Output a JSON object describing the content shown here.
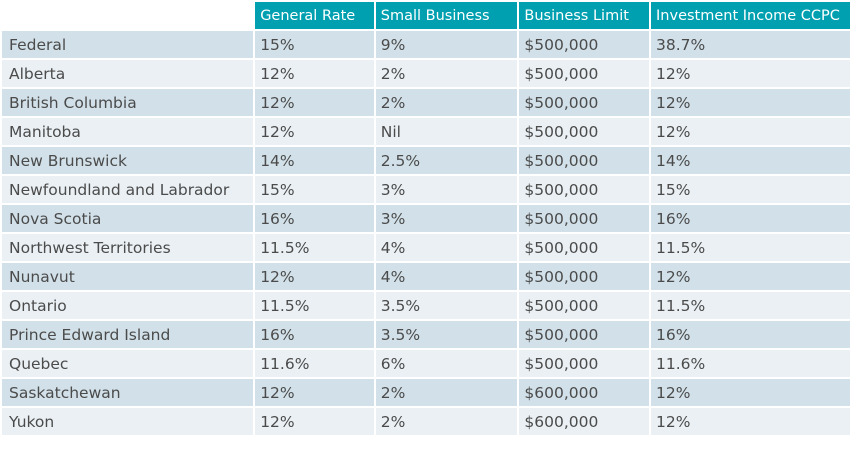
{
  "table": {
    "headers": [
      "",
      "General Rate",
      "Small Business",
      "Business Limit",
      "Investment Income CCPC"
    ],
    "rows": [
      [
        "Federal",
        "15%",
        "9%",
        "$500,000",
        "38.7%"
      ],
      [
        "Alberta",
        "12%",
        "2%",
        "$500,000",
        "12%"
      ],
      [
        "British Columbia",
        "12%",
        "2%",
        "$500,000",
        "12%"
      ],
      [
        "Manitoba",
        "12%",
        "Nil",
        "$500,000",
        "12%"
      ],
      [
        "New Brunswick",
        "14%",
        "2.5%",
        "$500,000",
        "14%"
      ],
      [
        "Newfoundland and Labrador",
        "15%",
        "3%",
        "$500,000",
        "15%"
      ],
      [
        "Nova Scotia",
        "16%",
        "3%",
        "$500,000",
        "16%"
      ],
      [
        "Northwest Territories",
        "11.5%",
        "4%",
        "$500,000",
        "11.5%"
      ],
      [
        "Nunavut",
        "12%",
        "4%",
        "$500,000",
        "12%"
      ],
      [
        "Ontario",
        "11.5%",
        "3.5%",
        "$500,000",
        "11.5%"
      ],
      [
        "Prince Edward Island",
        "16%",
        "3.5%",
        "$500,000",
        "16%"
      ],
      [
        "Quebec",
        "11.6%",
        "6%",
        "$500,000",
        "11.6%"
      ],
      [
        "Saskatchewan",
        "12%",
        "2%",
        "$600,000",
        "12%"
      ],
      [
        "Yukon",
        "12%",
        "2%",
        "$600,000",
        "12%"
      ]
    ]
  },
  "colors": {
    "header_bg": "#00a0b0",
    "header_text": "#ffffff",
    "row_odd_bg": "#d2e1e9",
    "row_even_bg": "#eaf0f4",
    "cell_text": "#4b4b4b"
  }
}
